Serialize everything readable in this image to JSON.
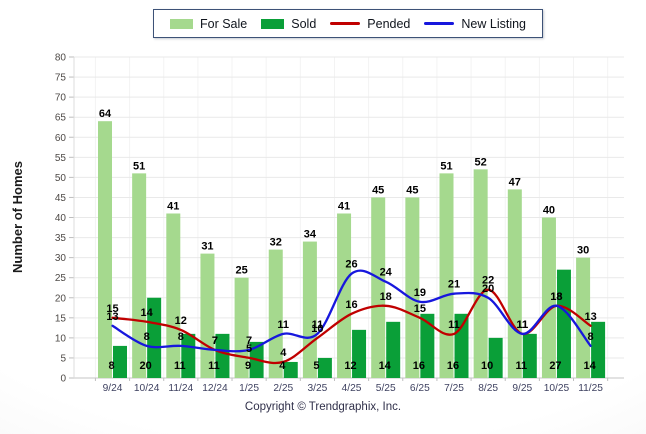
{
  "legend": {
    "items": [
      {
        "label": "For Sale",
        "type": "bar",
        "color": "#a5d98e"
      },
      {
        "label": "Sold",
        "type": "bar",
        "color": "#0a9f38"
      },
      {
        "label": "Pended",
        "type": "line",
        "color": "#c00000"
      },
      {
        "label": "New Listing",
        "type": "line",
        "color": "#1717dd"
      }
    ]
  },
  "chart_data": {
    "type": "combo",
    "categories": [
      "9/24",
      "10/24",
      "11/24",
      "12/24",
      "1/25",
      "2/25",
      "3/25",
      "4/25",
      "5/25",
      "6/25",
      "7/25",
      "8/25",
      "9/25",
      "10/25",
      "11/25"
    ],
    "series": [
      {
        "name": "For Sale",
        "type": "bar",
        "color": "#a5d98e",
        "values": [
          64,
          51,
          41,
          31,
          25,
          32,
          34,
          41,
          45,
          45,
          51,
          52,
          47,
          40,
          30
        ]
      },
      {
        "name": "Sold",
        "type": "bar",
        "color": "#0a9f38",
        "values": [
          8,
          20,
          11,
          11,
          9,
          4,
          5,
          12,
          14,
          16,
          16,
          10,
          11,
          27,
          14
        ]
      },
      {
        "name": "Pended",
        "type": "line",
        "color": "#c00000",
        "values": [
          15,
          14,
          12,
          7,
          5,
          4,
          10,
          16,
          18,
          15,
          11,
          22,
          11,
          18,
          13
        ]
      },
      {
        "name": "New Listing",
        "type": "line",
        "color": "#1717dd",
        "values": [
          13,
          8,
          8,
          7,
          7,
          11,
          11,
          26,
          24,
          19,
          21,
          20,
          11,
          18,
          8
        ]
      }
    ],
    "ylabel": "Number of Homes",
    "xlabel": "",
    "ylim": [
      0,
      80
    ],
    "ytick_step": 5,
    "grid": true,
    "legend_position": "top",
    "data_labels": true
  },
  "footer": {
    "copyright": "Copyright © Trendgraphix, Inc."
  }
}
